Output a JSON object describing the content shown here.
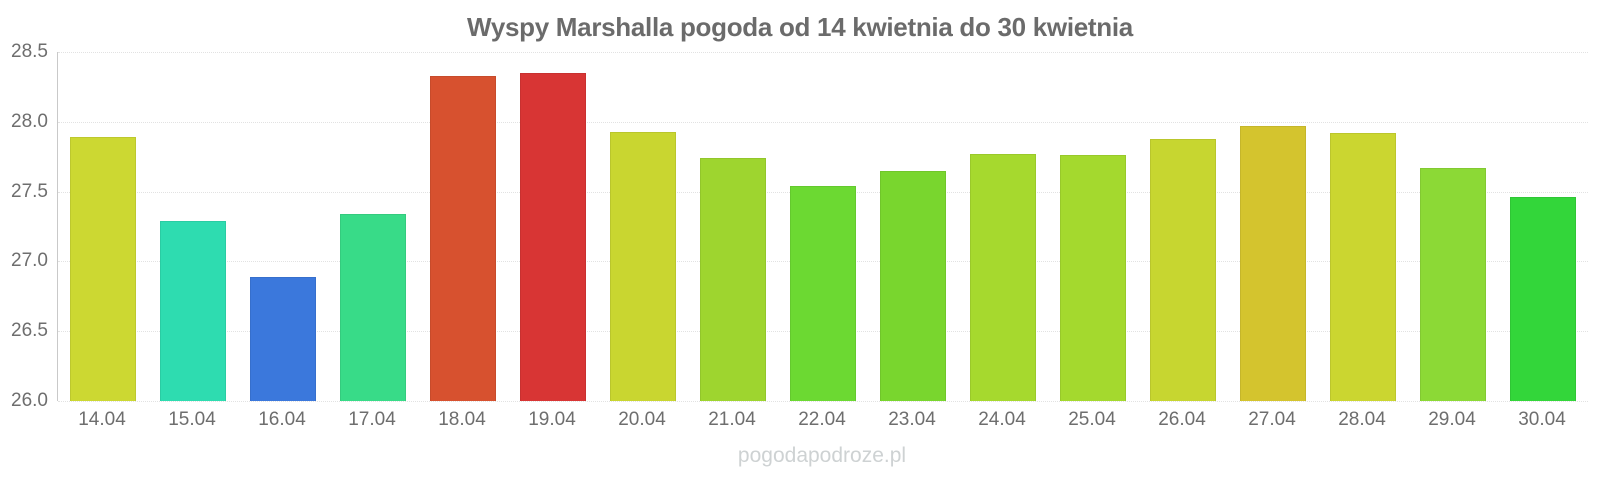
{
  "colors": {
    "background": "#ffffff",
    "title_text": "#6b6b6b",
    "axis_label_text": "#6e6e6e",
    "axis_line": "#c9c9c9",
    "gridline": "#e2e2e2",
    "watermark_text": "#ced2d3"
  },
  "chart_data": {
    "type": "bar",
    "title": "Wyspy Marshalla pogoda od 14 kwietnia do 30 kwietnia",
    "xlabel": "",
    "ylabel": "",
    "categories": [
      "14.04",
      "15.04",
      "16.04",
      "17.04",
      "18.04",
      "19.04",
      "20.04",
      "21.04",
      "22.04",
      "23.04",
      "24.04",
      "25.04",
      "26.04",
      "27.04",
      "28.04",
      "29.04",
      "30.04"
    ],
    "values": [
      27.89,
      27.29,
      26.89,
      27.34,
      28.33,
      28.35,
      27.93,
      27.74,
      27.54,
      27.65,
      27.77,
      27.76,
      27.88,
      27.97,
      27.92,
      27.67,
      27.46
    ],
    "bar_colors": [
      "#ccd832",
      "#2edcb0",
      "#3b78dc",
      "#38db88",
      "#d7512f",
      "#d83534",
      "#c9d630",
      "#9ed52f",
      "#6cd932",
      "#79d62e",
      "#a6d92e",
      "#a4d92e",
      "#c7d630",
      "#d4c42e",
      "#cbd630",
      "#8cd936",
      "#33d63a"
    ],
    "ylim": [
      26.0,
      28.5
    ],
    "ytick_labels": [
      "28.5",
      "28.0",
      "27.5",
      "27.0",
      "26.5",
      "26.0"
    ],
    "grid": "horizontal-dotted",
    "legend": "none",
    "watermark": "pogodapodroze.pl"
  }
}
